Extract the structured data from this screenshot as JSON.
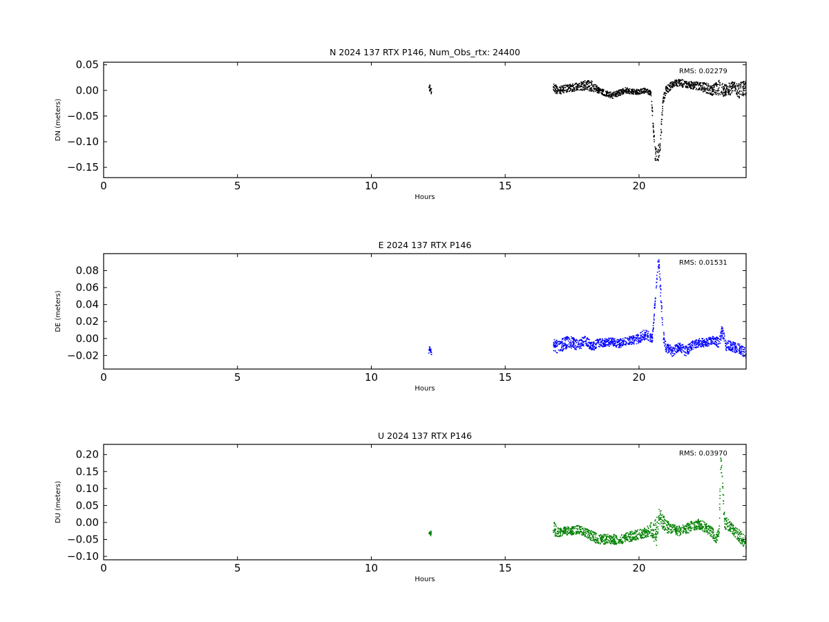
{
  "chart_data": [
    {
      "type": "scatter",
      "title": "N 2024 137 RTX  P146, Num_Obs_rtx: 24400",
      "xlabel": "Hours",
      "ylabel": "DN (meters)",
      "xlim": [
        0,
        24
      ],
      "ylim": [
        -0.17,
        0.055
      ],
      "xticks": [
        0,
        5,
        10,
        15,
        20
      ],
      "yticks": [
        0.05,
        0.0,
        -0.05,
        -0.1,
        -0.15
      ],
      "ytick_labels": [
        "0.05",
        "0.00",
        "−0.05",
        "−0.10",
        "−0.15"
      ],
      "color": "#000000",
      "annotation": "RMS:  0.02279",
      "series": [
        {
          "x": [
            12.15,
            12.2,
            12.25,
            16.8,
            17.0,
            17.25,
            17.5,
            17.75,
            18.0,
            18.25,
            18.5,
            18.75,
            19.0,
            19.25,
            19.5,
            19.75,
            20.0,
            20.25,
            20.45,
            20.6,
            20.7,
            20.8,
            20.85,
            20.9,
            21.0,
            21.25,
            21.5,
            21.75,
            22.0,
            22.25,
            22.5,
            22.75,
            23.0,
            23.25,
            23.5,
            23.75,
            24.0
          ],
          "y": [
            0.0,
            0.005,
            -0.003,
            0.005,
            0.0,
            0.003,
            0.005,
            0.008,
            0.01,
            0.008,
            0.0,
            -0.005,
            -0.01,
            -0.005,
            0.0,
            -0.002,
            -0.003,
            0.0,
            -0.005,
            -0.12,
            -0.13,
            -0.1,
            -0.06,
            -0.02,
            0.0,
            0.012,
            0.015,
            0.012,
            0.01,
            0.008,
            0.005,
            0.0,
            0.005,
            0.0,
            0.005,
            0.0,
            0.005
          ],
          "spread": [
            0.015,
            0.015,
            0.015,
            0.018,
            0.015,
            0.015,
            0.015,
            0.015,
            0.02,
            0.02,
            0.012,
            0.012,
            0.012,
            0.012,
            0.012,
            0.01,
            0.01,
            0.01,
            0.01,
            0.03,
            0.03,
            0.03,
            0.02,
            0.015,
            0.015,
            0.015,
            0.015,
            0.015,
            0.015,
            0.015,
            0.02,
            0.02,
            0.03,
            0.025,
            0.025,
            0.03,
            0.03
          ]
        }
      ]
    },
    {
      "type": "scatter",
      "title": "E 2024 137 RTX  P146",
      "xlabel": "Hours",
      "ylabel": "DE (meters)",
      "xlim": [
        0,
        24
      ],
      "ylim": [
        -0.036,
        0.1
      ],
      "xticks": [
        0,
        5,
        10,
        15,
        20
      ],
      "yticks": [
        0.08,
        0.06,
        0.04,
        0.02,
        0.0,
        -0.02
      ],
      "ytick_labels": [
        "0.08",
        "0.06",
        "0.04",
        "0.02",
        "0.00",
        "−0.02"
      ],
      "color": "#0000ff",
      "annotation": "RMS:  0.01531",
      "series": [
        {
          "x": [
            12.15,
            12.2,
            12.25,
            16.8,
            17.0,
            17.25,
            17.5,
            17.75,
            18.0,
            18.25,
            18.5,
            18.75,
            19.0,
            19.25,
            19.5,
            19.75,
            20.0,
            20.25,
            20.5,
            20.7,
            20.75,
            20.8,
            20.9,
            21.0,
            21.25,
            21.5,
            21.75,
            22.0,
            22.25,
            22.5,
            22.75,
            23.0,
            23.1,
            23.25,
            23.5,
            23.75,
            24.0
          ],
          "y": [
            -0.014,
            -0.012,
            -0.015,
            -0.008,
            -0.01,
            -0.005,
            -0.005,
            -0.008,
            -0.002,
            -0.01,
            -0.005,
            -0.005,
            -0.004,
            -0.006,
            -0.003,
            -0.002,
            0.0,
            0.005,
            0.0,
            0.085,
            0.09,
            0.06,
            0.005,
            -0.01,
            -0.015,
            -0.01,
            -0.015,
            -0.008,
            -0.005,
            -0.005,
            -0.002,
            -0.005,
            0.01,
            -0.008,
            -0.01,
            -0.012,
            -0.018
          ],
          "spread": [
            0.008,
            0.008,
            0.008,
            0.014,
            0.015,
            0.015,
            0.014,
            0.012,
            0.012,
            0.01,
            0.01,
            0.01,
            0.01,
            0.01,
            0.01,
            0.01,
            0.012,
            0.012,
            0.01,
            0.012,
            0.012,
            0.03,
            0.012,
            0.012,
            0.012,
            0.01,
            0.012,
            0.01,
            0.01,
            0.01,
            0.01,
            0.012,
            0.014,
            0.012,
            0.012,
            0.012,
            0.012
          ]
        }
      ]
    },
    {
      "type": "scatter",
      "title": "U 2024 137 RTX  P146",
      "xlabel": "Hours",
      "ylabel": "DU (meters)",
      "xlim": [
        0,
        24
      ],
      "ylim": [
        -0.11,
        0.23
      ],
      "xticks": [
        0,
        5,
        10,
        15,
        20
      ],
      "yticks": [
        0.2,
        0.15,
        0.1,
        0.05,
        0.0,
        -0.05,
        -0.1
      ],
      "ytick_labels": [
        "0.20",
        "0.15",
        "0.10",
        "0.05",
        "0.00",
        "−0.05",
        "−0.10"
      ],
      "color": "#008000",
      "annotation": "RMS:  0.03970",
      "series": [
        {
          "x": [
            12.15,
            12.2,
            12.25,
            16.8,
            17.0,
            17.25,
            17.5,
            17.75,
            18.0,
            18.25,
            18.5,
            18.75,
            19.0,
            19.25,
            19.5,
            19.75,
            20.0,
            20.25,
            20.45,
            20.65,
            20.75,
            21.0,
            21.25,
            21.5,
            21.75,
            22.0,
            22.25,
            22.5,
            22.75,
            22.85,
            23.0,
            23.05,
            23.1,
            23.2,
            23.5,
            23.75,
            24.0
          ],
          "y": [
            -0.035,
            -0.03,
            -0.035,
            -0.02,
            -0.03,
            -0.025,
            -0.025,
            -0.02,
            -0.03,
            -0.04,
            -0.05,
            -0.05,
            -0.05,
            -0.05,
            -0.045,
            -0.04,
            -0.035,
            -0.03,
            -0.02,
            -0.03,
            0.02,
            -0.01,
            -0.02,
            -0.025,
            -0.02,
            -0.01,
            -0.005,
            -0.015,
            -0.03,
            -0.055,
            -0.03,
            0.18,
            0.15,
            0.0,
            -0.02,
            -0.04,
            -0.06
          ],
          "spread": [
            0.015,
            0.015,
            0.015,
            0.05,
            0.025,
            0.025,
            0.025,
            0.025,
            0.025,
            0.03,
            0.03,
            0.03,
            0.03,
            0.03,
            0.03,
            0.03,
            0.03,
            0.03,
            0.04,
            0.08,
            0.05,
            0.04,
            0.03,
            0.03,
            0.03,
            0.03,
            0.03,
            0.03,
            0.03,
            0.03,
            0.03,
            0.04,
            0.04,
            0.04,
            0.03,
            0.035,
            0.04
          ]
        }
      ]
    }
  ]
}
